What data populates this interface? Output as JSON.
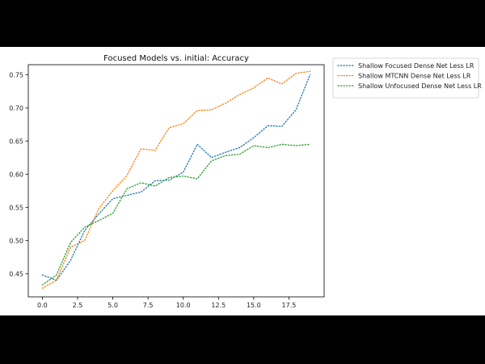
{
  "chart_data": {
    "type": "line",
    "title": "Focused Models vs. initial: Accuracy",
    "xlabel": "",
    "ylabel": "",
    "xlim": [
      -1,
      20
    ],
    "ylim": [
      0.415,
      0.765
    ],
    "x_ticks": [
      0.0,
      2.5,
      5.0,
      7.5,
      10.0,
      12.5,
      15.0,
      17.5
    ],
    "x_tick_labels": [
      "0.0",
      "2.5",
      "5.0",
      "7.5",
      "10.0",
      "12.5",
      "15.0",
      "17.5"
    ],
    "y_ticks": [
      0.45,
      0.5,
      0.55,
      0.6,
      0.65,
      0.7,
      0.75
    ],
    "y_tick_labels": [
      "0.45",
      "0.50",
      "0.55",
      "0.60",
      "0.65",
      "0.70",
      "0.75"
    ],
    "grid": false,
    "legend_position": "outside-top-right",
    "line_style": "dotted",
    "x": [
      0,
      1,
      2,
      3,
      4,
      5,
      6,
      7,
      8,
      9,
      10,
      11,
      12,
      13,
      14,
      15,
      16,
      17,
      18,
      19
    ],
    "series": [
      {
        "name": "Shallow Focused Dense Net Less LR",
        "color": "#1f77b4",
        "values": [
          0.448,
          0.44,
          0.47,
          0.515,
          0.54,
          0.563,
          0.568,
          0.573,
          0.59,
          0.591,
          0.603,
          0.645,
          0.625,
          0.633,
          0.64,
          0.655,
          0.673,
          0.672,
          0.697,
          0.75
        ]
      },
      {
        "name": "Shallow MTCNN Dense Net Less LR",
        "color": "#ff7f0e",
        "values": [
          0.428,
          0.44,
          0.49,
          0.5,
          0.548,
          0.575,
          0.598,
          0.638,
          0.636,
          0.67,
          0.676,
          0.696,
          0.697,
          0.707,
          0.72,
          0.73,
          0.745,
          0.736,
          0.752,
          0.755
        ]
      },
      {
        "name": "Shallow Unfocused Dense Net Less LR",
        "color": "#2ca02c",
        "values": [
          0.433,
          0.448,
          0.497,
          0.52,
          0.53,
          0.541,
          0.578,
          0.587,
          0.582,
          0.595,
          0.597,
          0.593,
          0.62,
          0.628,
          0.63,
          0.643,
          0.64,
          0.645,
          0.643,
          0.645
        ]
      }
    ]
  }
}
